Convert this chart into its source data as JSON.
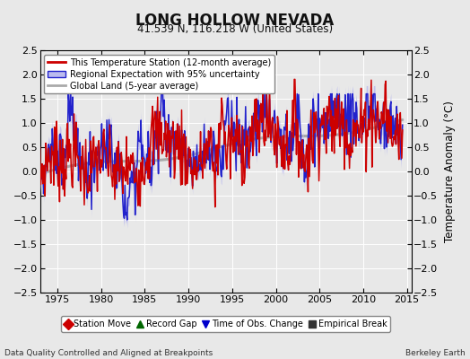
{
  "title": "LONG HOLLOW NEVADA",
  "subtitle": "41.539 N, 116.218 W (United States)",
  "xlabel_left": "Data Quality Controlled and Aligned at Breakpoints",
  "xlabel_right": "Berkeley Earth",
  "ylabel": "Temperature Anomaly (°C)",
  "ylim": [
    -2.5,
    2.5
  ],
  "xlim": [
    1973.0,
    2015.5
  ],
  "xticks": [
    1975,
    1980,
    1985,
    1990,
    1995,
    2000,
    2005,
    2010,
    2015
  ],
  "yticks": [
    -2.5,
    -2,
    -1.5,
    -1,
    -0.5,
    0,
    0.5,
    1,
    1.5,
    2,
    2.5
  ],
  "bg_color": "#e8e8e8",
  "plot_bg_color": "#e8e8e8",
  "grid_color": "#ffffff",
  "station_color": "#cc0000",
  "regional_color": "#2222cc",
  "regional_fill_color": "#bbbbee",
  "global_color": "#aaaaaa",
  "legend_items": [
    "This Temperature Station (12-month average)",
    "Regional Expectation with 95% uncertainty",
    "Global Land (5-year average)"
  ],
  "bottom_legend": [
    {
      "marker": "D",
      "color": "#cc0000",
      "label": "Station Move"
    },
    {
      "marker": "^",
      "color": "#006600",
      "label": "Record Gap"
    },
    {
      "marker": "v",
      "color": "#0000cc",
      "label": "Time of Obs. Change"
    },
    {
      "marker": "s",
      "color": "#333333",
      "label": "Empirical Break"
    }
  ]
}
